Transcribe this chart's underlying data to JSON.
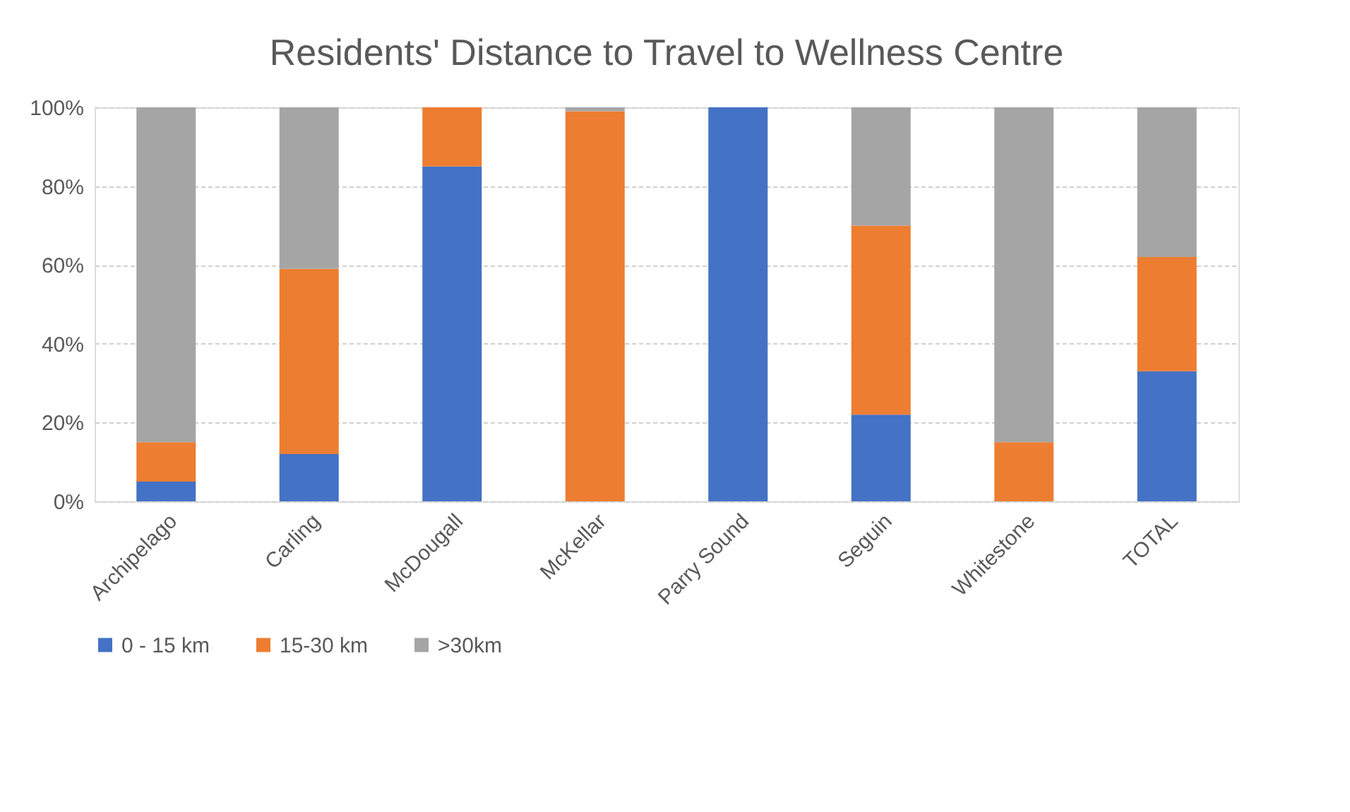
{
  "chart_data": {
    "type": "bar",
    "title": "Residents' Distance to Travel to Wellness Centre",
    "stacked": true,
    "categories": [
      "Archipelago",
      "Carling",
      "McDougall",
      "McKellar",
      "Parry Sound",
      "Seguin",
      "Whitestone",
      "TOTAL"
    ],
    "series": [
      {
        "name": "0 - 15 km",
        "color": "#4472c4",
        "values": [
          5,
          12,
          85,
          0,
          100,
          22,
          0,
          33
        ]
      },
      {
        "name": "15-30 km",
        "color": "#ed7d31",
        "values": [
          10,
          47,
          15,
          99,
          0,
          48,
          15,
          29
        ]
      },
      {
        "name": ">30km",
        "color": "#a5a5a5",
        "values": [
          85,
          41,
          0,
          1,
          0,
          30,
          85,
          38
        ]
      }
    ],
    "ylim": [
      0,
      100
    ],
    "yticks": [
      {
        "value": 0,
        "label": "0%"
      },
      {
        "value": 20,
        "label": "20%"
      },
      {
        "value": 40,
        "label": "40%"
      },
      {
        "value": 60,
        "label": "60%"
      },
      {
        "value": 80,
        "label": "80%"
      },
      {
        "value": 100,
        "label": "100%"
      }
    ],
    "grid": "y",
    "legend": "bottom"
  }
}
